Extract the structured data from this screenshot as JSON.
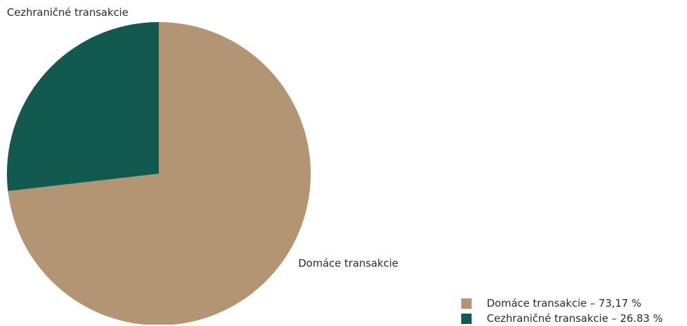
{
  "colors": {
    "domestic": "#b39473",
    "cross_border": "#125a50"
  },
  "legend": {
    "items": [
      {
        "label": "Domáce transakcie – 73,17 %",
        "color": "#b39473"
      },
      {
        "label": "Cezhraničné transakcie – 26.83 %",
        "color": "#125a50"
      }
    ]
  },
  "chart_data": {
    "type": "pie",
    "categories": [
      "Domáce transakcie",
      "Cezhraničné transakcie"
    ],
    "values": [
      73.17,
      26.83
    ],
    "slice_labels": [
      "Domáce transakcie",
      "Cezhraničné transakcie"
    ],
    "colors": [
      "#b39473",
      "#125a50"
    ],
    "legend_position": "bottom-right"
  }
}
